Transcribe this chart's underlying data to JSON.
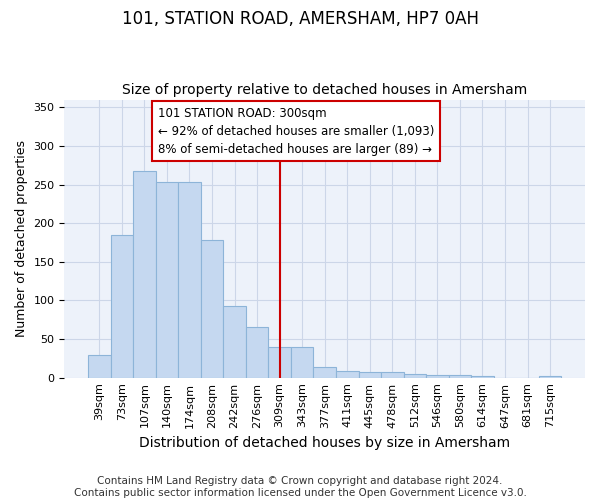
{
  "title": "101, STATION ROAD, AMERSHAM, HP7 0AH",
  "subtitle": "Size of property relative to detached houses in Amersham",
  "xlabel": "Distribution of detached houses by size in Amersham",
  "ylabel": "Number of detached properties",
  "categories": [
    "39sqm",
    "73sqm",
    "107sqm",
    "140sqm",
    "174sqm",
    "208sqm",
    "242sqm",
    "276sqm",
    "309sqm",
    "343sqm",
    "377sqm",
    "411sqm",
    "445sqm",
    "478sqm",
    "512sqm",
    "546sqm",
    "580sqm",
    "614sqm",
    "647sqm",
    "681sqm",
    "715sqm"
  ],
  "values": [
    30,
    185,
    267,
    253,
    253,
    178,
    93,
    65,
    40,
    40,
    14,
    9,
    7,
    7,
    5,
    3,
    3,
    2,
    0,
    0,
    2
  ],
  "bar_color": "#c5d8f0",
  "bar_edge_color": "#8db4d8",
  "vline_color": "#cc0000",
  "vline_x": 8.0,
  "annotation_line1": "101 STATION ROAD: 300sqm",
  "annotation_line2": "← 92% of detached houses are smaller (1,093)",
  "annotation_line3": "8% of semi-detached houses are larger (89) →",
  "ylim": [
    0,
    360
  ],
  "yticks": [
    0,
    50,
    100,
    150,
    200,
    250,
    300,
    350
  ],
  "grid_color": "#ccd6e8",
  "bg_color": "#edf2fa",
  "footer_text": "Contains HM Land Registry data © Crown copyright and database right 2024.\nContains public sector information licensed under the Open Government Licence v3.0.",
  "title_fontsize": 12,
  "subtitle_fontsize": 10,
  "ylabel_fontsize": 9,
  "xlabel_fontsize": 10,
  "tick_fontsize": 8,
  "footer_fontsize": 7.5
}
